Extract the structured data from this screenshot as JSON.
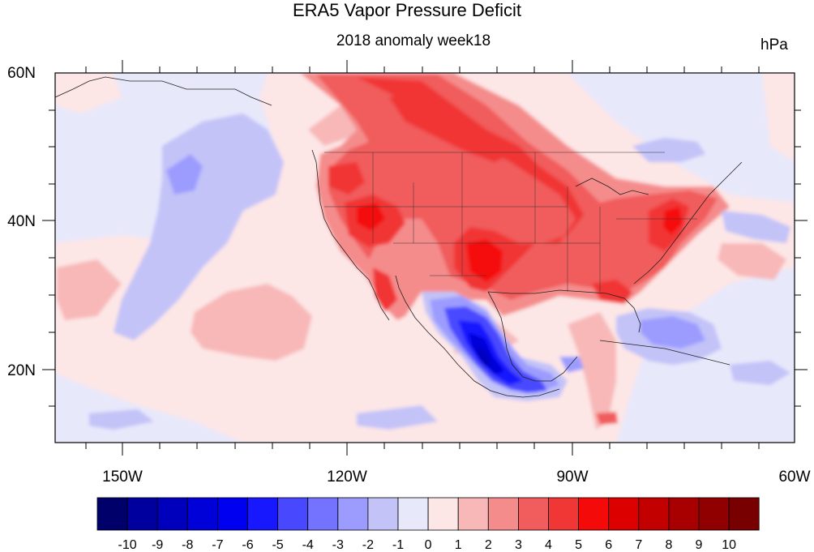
{
  "figure": {
    "title": "ERA5 Vapor Pressure Deficit",
    "subtitle": "2018 anomaly week18",
    "units": "hPa"
  },
  "map": {
    "projection": "cylindrical equidistant",
    "lon_range": [
      -160,
      -60
    ],
    "lat_range": [
      10,
      60
    ],
    "lat_labels": [
      "60N",
      "40N",
      "20N"
    ],
    "lon_labels": [
      "150W",
      "120W",
      "90W",
      "60W"
    ]
  },
  "colorbar": {
    "labels": [
      "-10",
      "-9",
      "-8",
      "-7",
      "-6",
      "-5",
      "-4",
      "-3",
      "-2",
      "-1",
      "0",
      "1",
      "2",
      "3",
      "4",
      "5",
      "6",
      "7",
      "8",
      "9",
      "10"
    ],
    "colors": [
      "#00006b",
      "#00009e",
      "#0000bc",
      "#0000d8",
      "#0000f0",
      "#1818ff",
      "#4848ff",
      "#7373ff",
      "#9c9cff",
      "#c3c3f8",
      "#e8e8fb",
      "#fde6e6",
      "#f8b8b8",
      "#f58c8c",
      "#f15c5c",
      "#f13636",
      "#f50a0a",
      "#dd0000",
      "#c20000",
      "#a80000",
      "#900000",
      "#780000"
    ]
  }
}
